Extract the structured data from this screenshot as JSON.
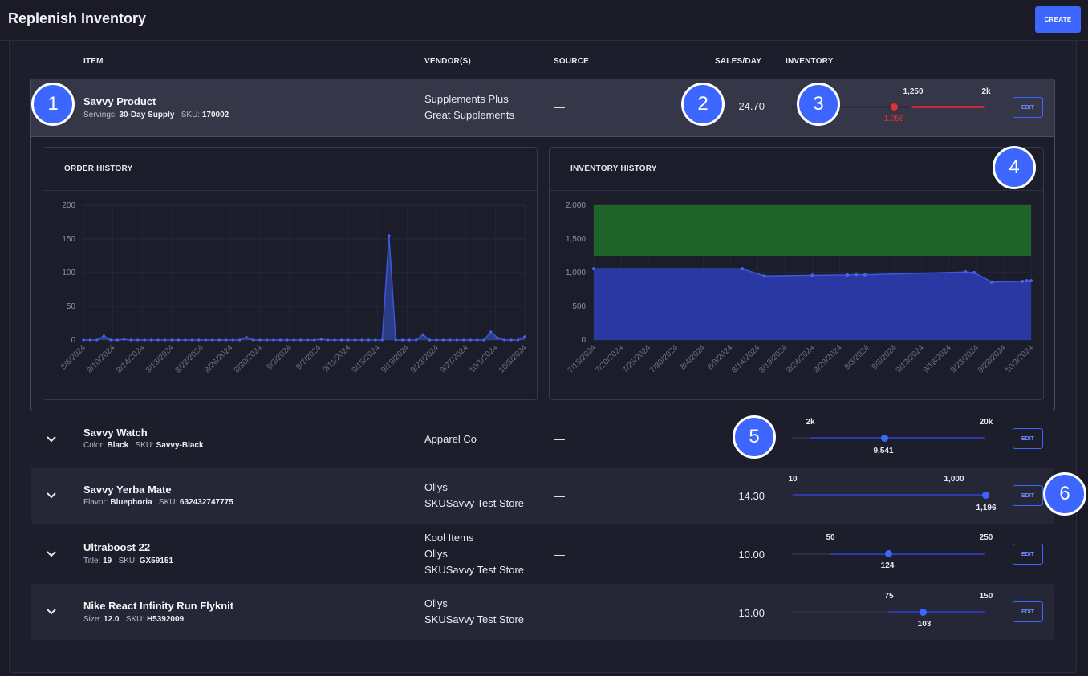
{
  "header": {
    "title": "Replenish Inventory",
    "create_label": "CREATE"
  },
  "columns": {
    "item": "ITEM",
    "vendors": "VENDOR(S)",
    "source": "SOURCE",
    "sales": "SALES/DAY",
    "inventory": "INVENTORY"
  },
  "rows": [
    {
      "name": "Savvy Product",
      "meta_key": "Servings:",
      "meta_val": "30-Day Supply",
      "sku_key": "SKU:",
      "sku_val": "170002",
      "vendor1": "Supplements Plus",
      "vendor2": "Great Supplements",
      "vendor3": "",
      "source": "—",
      "sales": "24.70",
      "inv_min": "1,250",
      "inv_max": "2k",
      "inv_current": "1,056",
      "inv_level": 0.53,
      "status_color": "#e0303a",
      "edit": "EDIT"
    },
    {
      "name": "Savvy Watch",
      "meta_key": "Color:",
      "meta_val": "Black",
      "sku_key": "SKU:",
      "sku_val": "Savvy-Black",
      "vendor1": "Apparel Co",
      "vendor2": "",
      "vendor3": "",
      "source": "—",
      "sales": "",
      "inv_min": "2k",
      "inv_max": "20k",
      "inv_current": "9,541",
      "inv_level": 0.48,
      "status_color": "#3d66ff",
      "edit": "EDIT"
    },
    {
      "name": "Savvy Yerba Mate",
      "meta_key": "Flavor:",
      "meta_val": "Bluephoria",
      "sku_key": "SKU:",
      "sku_val": "632432747775",
      "vendor1": "Ollys",
      "vendor2": "SKUSavvy Test Store",
      "vendor3": "",
      "source": "—",
      "sales": "14.30",
      "inv_min": "10",
      "inv_max": "1,000",
      "inv_current": "1,196",
      "inv_level": 1.0,
      "status_color": "#3d66ff",
      "edit": "EDIT"
    },
    {
      "name": "Ultraboost 22",
      "meta_key": "Title:",
      "meta_val": "19",
      "sku_key": "SKU:",
      "sku_val": "GX59151",
      "vendor1": "Kool Items",
      "vendor2": "Ollys",
      "vendor3": "SKUSavvy Test Store",
      "source": "—",
      "sales": "10.00",
      "inv_min": "50",
      "inv_max": "250",
      "inv_current": "124",
      "inv_level": 0.5,
      "status_color": "#3d66ff",
      "edit": "EDIT"
    },
    {
      "name": "Nike React Infinity Run Flyknit",
      "meta_key": "Size:",
      "meta_val": "12.0",
      "sku_key": "SKU:",
      "sku_val": "H5392009",
      "vendor1": "Ollys",
      "vendor2": "SKUSavvy Test Store",
      "vendor3": "",
      "source": "—",
      "sales": "13.00",
      "inv_min": "75",
      "inv_max": "150",
      "inv_current": "103",
      "inv_level": 0.68,
      "status_color": "#3d66ff",
      "edit": "EDIT"
    }
  ],
  "callouts": [
    "1",
    "2",
    "3",
    "4",
    "5",
    "6"
  ],
  "chart_data": [
    {
      "type": "line",
      "title": "ORDER HISTORY",
      "ylim": [
        0,
        200
      ],
      "yticks": [
        "0",
        "50",
        "100",
        "150",
        "200"
      ],
      "xticks": [
        "8/6/2024",
        "8/10/2024",
        "8/14/2024",
        "8/18/2024",
        "8/22/2024",
        "8/26/2024",
        "8/30/2024",
        "9/3/2024",
        "9/7/2024",
        "9/11/2024",
        "9/15/2024",
        "9/19/2024",
        "9/23/2024",
        "9/27/2024",
        "10/1/2024",
        "10/5/2024"
      ],
      "values": [
        0,
        0,
        0,
        6,
        0,
        0,
        1,
        0,
        0,
        0,
        0,
        0,
        0,
        0,
        0,
        0,
        0,
        0,
        0,
        0,
        0,
        0,
        0,
        0,
        4,
        0,
        0,
        0,
        0,
        0,
        0,
        0,
        0,
        0,
        0,
        1,
        0,
        0,
        0,
        0,
        0,
        0,
        0,
        0,
        0,
        155,
        0,
        0,
        0,
        0,
        8,
        0,
        0,
        0,
        0,
        0,
        0,
        0,
        0,
        0,
        12,
        3,
        0,
        0,
        0,
        5
      ],
      "color": "#3d56d6"
    },
    {
      "type": "area",
      "title": "INVENTORY HISTORY",
      "ylim": [
        0,
        2000
      ],
      "yticks": [
        "0",
        "500",
        "1,000",
        "1,500",
        "2,000"
      ],
      "xticks": [
        "7/15/2024",
        "7/20/2024",
        "7/25/2024",
        "7/30/2024",
        "8/4/2024",
        "8/9/2024",
        "8/14/2024",
        "8/19/2024",
        "8/24/2024",
        "8/29/2024",
        "9/3/2024",
        "9/8/2024",
        "9/13/2024",
        "9/18/2024",
        "9/23/2024",
        "9/28/2024",
        "10/3/2024"
      ],
      "target_band": [
        1250,
        2000
      ],
      "points": [
        {
          "i": 0,
          "v": 1056
        },
        {
          "i": 0.34,
          "v": 1056
        },
        {
          "i": 0.39,
          "v": 950
        },
        {
          "i": 0.5,
          "v": 960
        },
        {
          "i": 0.58,
          "v": 965
        },
        {
          "i": 0.6,
          "v": 970
        },
        {
          "i": 0.62,
          "v": 968
        },
        {
          "i": 0.85,
          "v": 1010
        },
        {
          "i": 0.87,
          "v": 1000
        },
        {
          "i": 0.91,
          "v": 860
        },
        {
          "i": 0.98,
          "v": 870
        },
        {
          "i": 0.99,
          "v": 880
        },
        {
          "i": 1.0,
          "v": 880
        }
      ],
      "band_color": "#1f6b28",
      "area_color": "#2b3db8"
    }
  ]
}
